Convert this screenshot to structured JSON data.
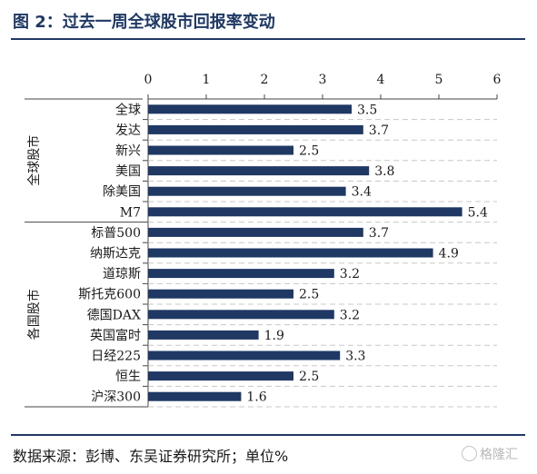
{
  "header": {
    "title": "图 2：过去一周全球股市回报率变动"
  },
  "footer": {
    "source": "数据来源：彭博、东吴证券研究所；单位%",
    "watermark": "格隆汇"
  },
  "colors": {
    "bar": "#1f3864",
    "title": "#1f3864",
    "gridline": "#c8c8c8"
  },
  "chart_data": {
    "type": "bar",
    "orientation": "horizontal",
    "title": "",
    "xlabel": "",
    "ylabel": "",
    "xlim": [
      0,
      6
    ],
    "x_ticks": [
      0,
      1,
      2,
      3,
      4,
      5,
      6
    ],
    "x_axis_position": "top",
    "categories": [
      "全球",
      "发达",
      "新兴",
      "美国",
      "除美国",
      "M7",
      "标普500",
      "纳斯达克",
      "道琼斯",
      "斯托克600",
      "德国DAX",
      "英国富时",
      "日经225",
      "恒生",
      "沪深300"
    ],
    "values": [
      3.5,
      3.7,
      2.5,
      3.8,
      3.4,
      5.4,
      3.7,
      4.9,
      3.2,
      2.5,
      3.2,
      1.9,
      3.3,
      2.5,
      1.6
    ],
    "data_labels": [
      "3.5",
      "3.7",
      "2.5",
      "3.8",
      "3.4",
      "5.4",
      "3.7",
      "4.9",
      "3.2",
      "2.5",
      "3.2",
      "1.9",
      "3.3",
      "2.5",
      "1.6"
    ],
    "groups": [
      {
        "label": "全球股市",
        "start": 0,
        "end": 5
      },
      {
        "label": "各国股市",
        "start": 6,
        "end": 14
      }
    ],
    "grid": "horizontal-dashed",
    "legend": "none"
  }
}
